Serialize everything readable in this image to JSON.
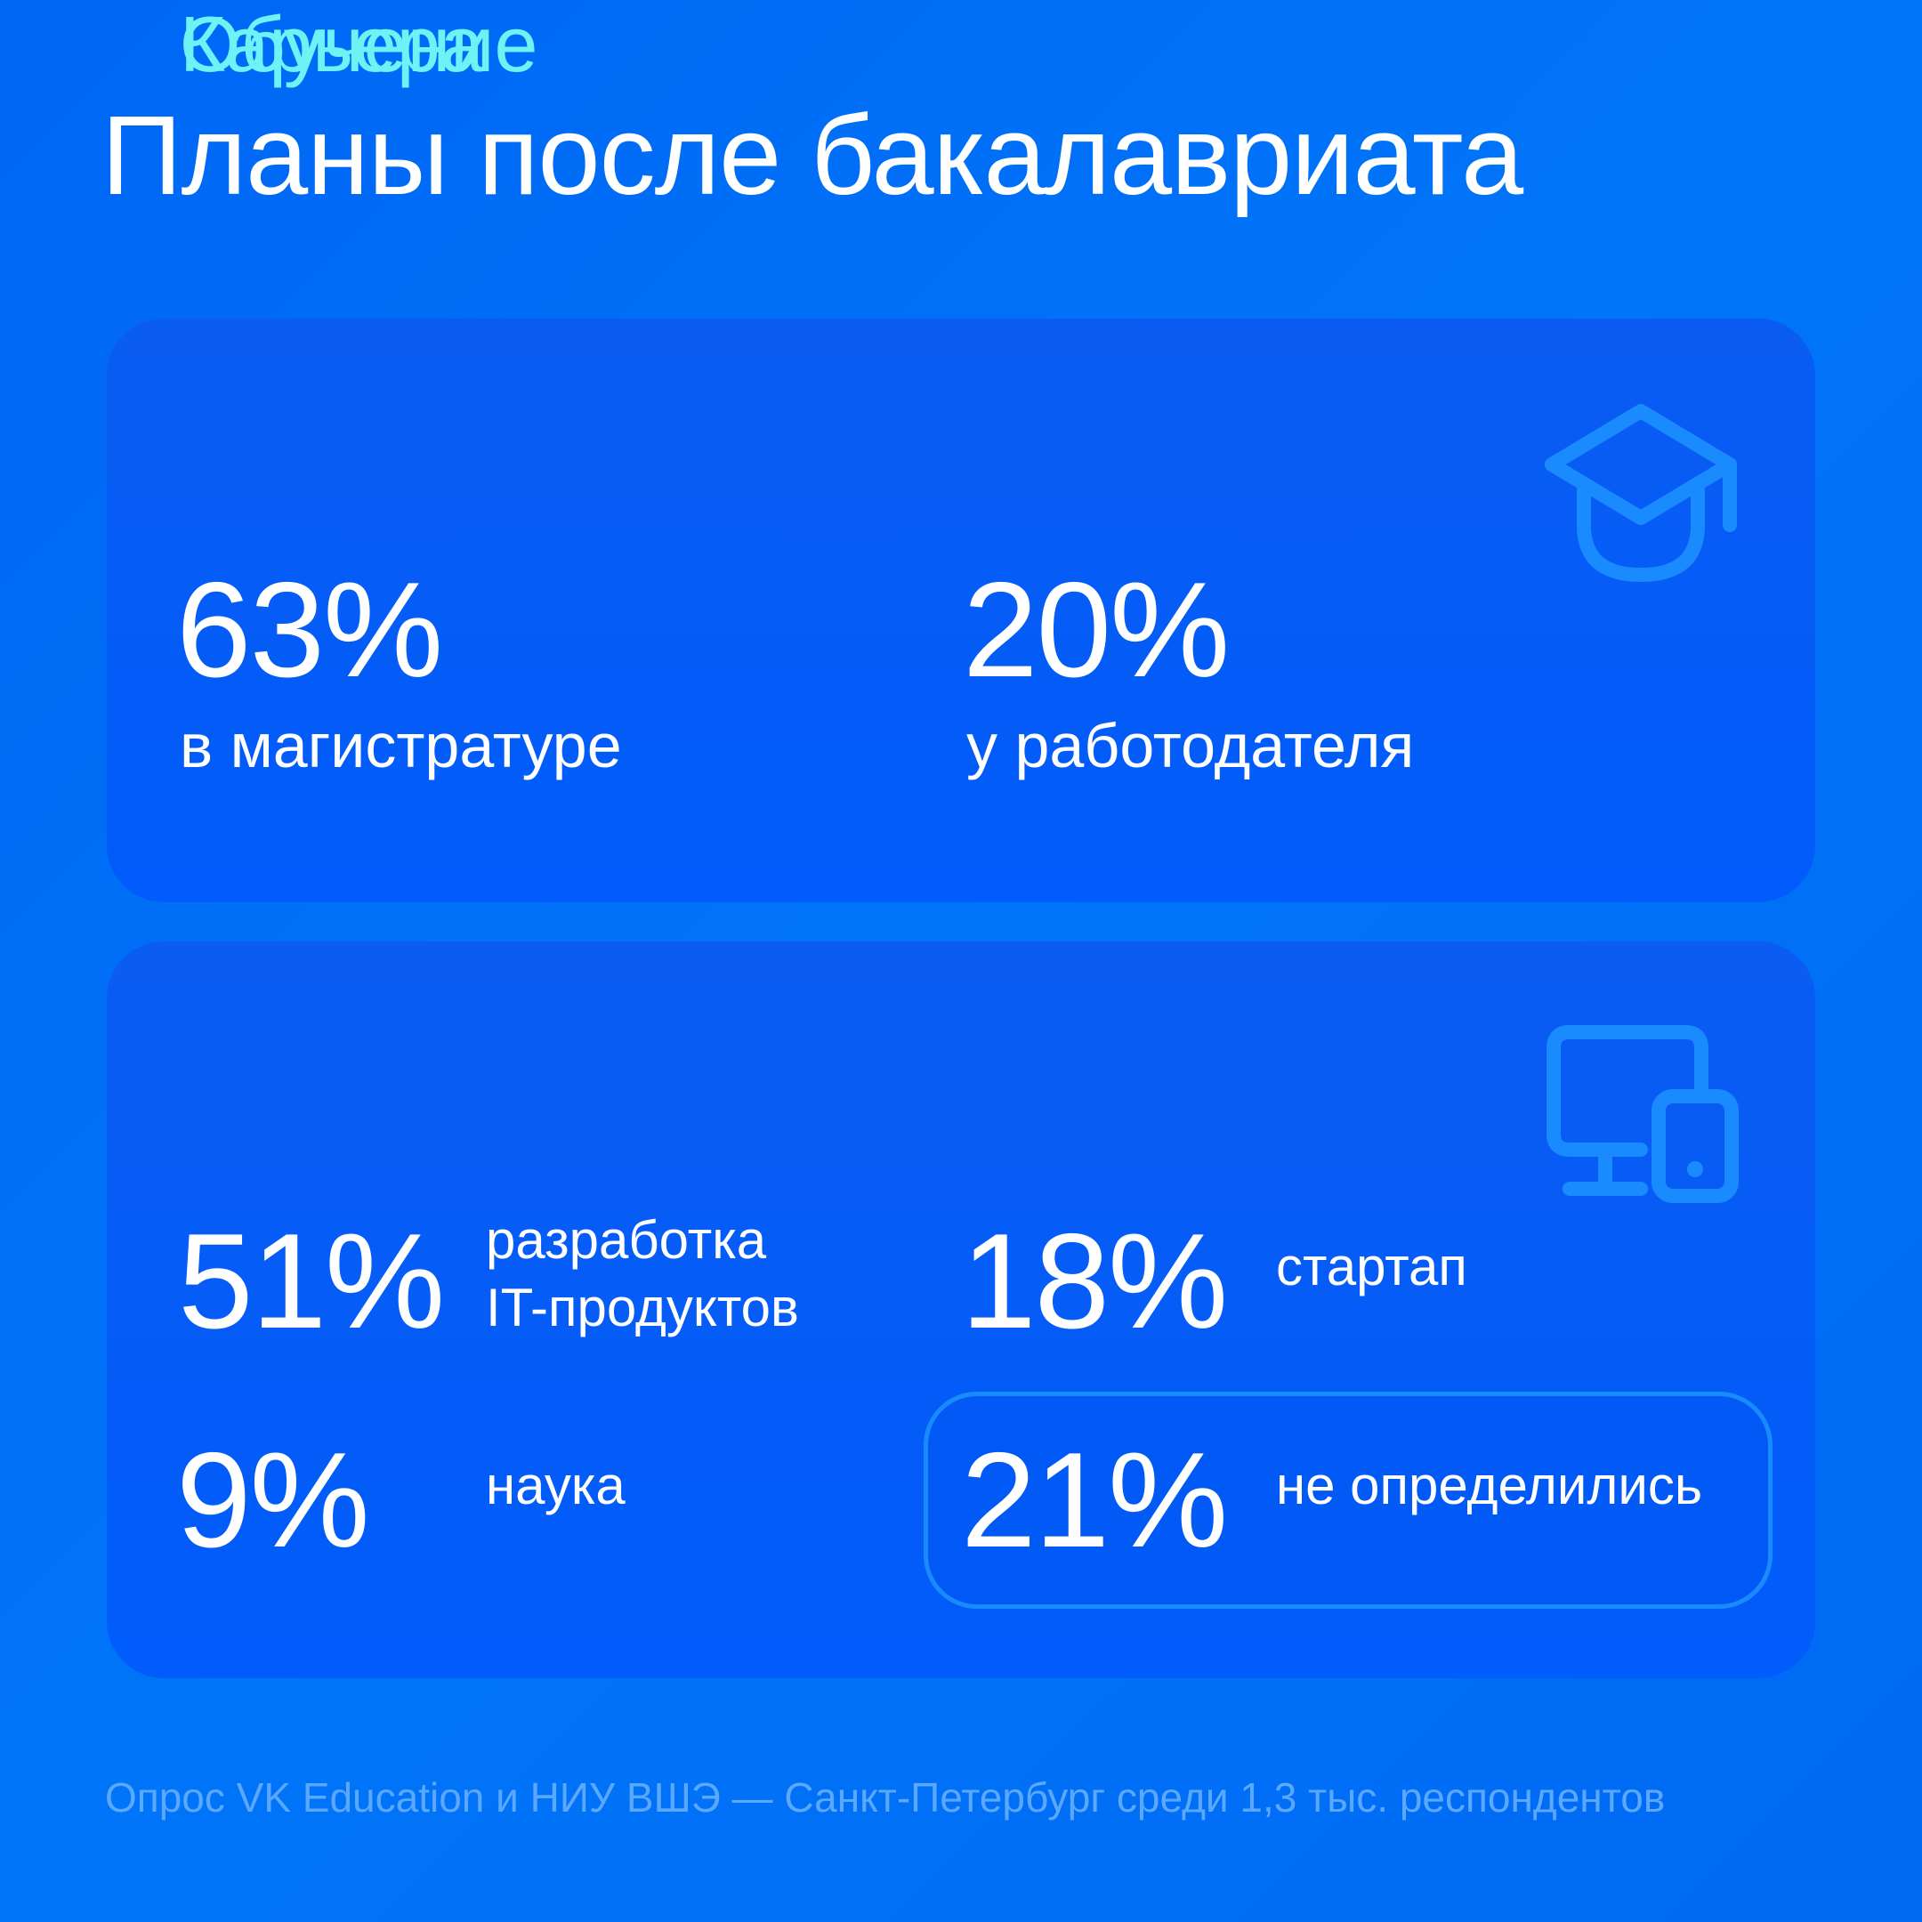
{
  "title": "Планы после бакалавриата",
  "study": {
    "heading": "Обучение",
    "icon": "graduation-cap-icon",
    "stats": [
      {
        "value": "63%",
        "label": "в магистратуре"
      },
      {
        "value": "20%",
        "label": "у работодателя"
      }
    ]
  },
  "career": {
    "heading": "Карьера",
    "icon": "computer-and-phone-icon",
    "stats": [
      {
        "value": "51%",
        "label_line1": "разработка",
        "label_line2": "IT-продуктов"
      },
      {
        "value": "18%",
        "label": "стартап"
      },
      {
        "value": "9%",
        "label": "наука"
      },
      {
        "value": "21%",
        "label": "не определились"
      }
    ]
  },
  "footer": "Опрос VK Education и НИУ ВШЭ — Санкт-Петербург среди 1,3 тыс. респондентов",
  "colors": {
    "background": "#0070F6",
    "card": "#005CFB",
    "accent": "#6EF2F5",
    "icon": "#1A8BFF",
    "footer": "#5AA8FF"
  }
}
